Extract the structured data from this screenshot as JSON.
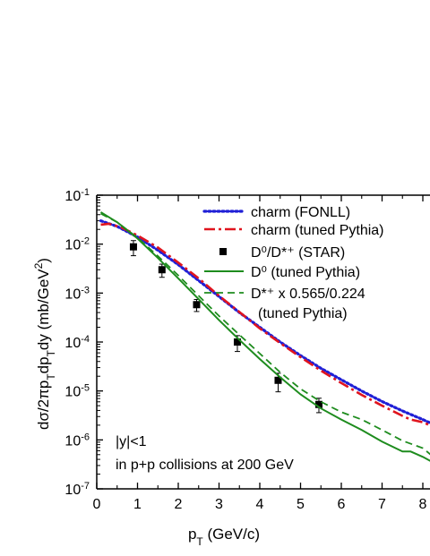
{
  "chart_data": {
    "type": "line",
    "y_scale": "log",
    "xlim": [
      0,
      8.3
    ],
    "ylim": [
      1e-07,
      0.1
    ],
    "xlabel": "p_T (GeV/c)",
    "ylabel": "dσ/2πp_T dp_T dy (mb/GeV²)",
    "x_ticks": [
      "0",
      "1",
      "2",
      "3",
      "4",
      "5",
      "6",
      "7",
      "8"
    ],
    "y_ticks": [
      {
        "value": 1e-07,
        "mant": "10",
        "exp": "-7"
      },
      {
        "value": 1e-06,
        "mant": "10",
        "exp": "-6"
      },
      {
        "value": 1e-05,
        "mant": "10",
        "exp": "-5"
      },
      {
        "value": 0.0001,
        "mant": "10",
        "exp": "-4"
      },
      {
        "value": 0.001,
        "mant": "10",
        "exp": "-3"
      },
      {
        "value": 0.01,
        "mant": "10",
        "exp": "-2"
      },
      {
        "value": 0.1,
        "mant": "10",
        "exp": "-1"
      }
    ],
    "annotations": [
      "|y|<1",
      "in p+p collisions at 200 GeV"
    ],
    "legend_position": "top-right",
    "series": [
      {
        "name": "charm (FONLL)",
        "style": "dotted",
        "color": "#1f1fd6",
        "x": [
          0.1,
          0.5,
          1.0,
          1.5,
          2.0,
          2.5,
          3.0,
          3.5,
          4.0,
          4.5,
          5.0,
          5.5,
          6.0,
          6.5,
          7.0,
          7.5,
          8.0,
          8.3
        ],
        "y": [
          0.03,
          0.023,
          0.014,
          0.0075,
          0.0038,
          0.0018,
          0.00085,
          0.0004,
          0.0002,
          0.0001,
          5.3e-05,
          2.9e-05,
          1.7e-05,
          1e-05,
          6.1e-06,
          3.9e-06,
          2.6e-06,
          2e-06
        ]
      },
      {
        "name": "charm (tuned Pythia)",
        "style": "dashdot",
        "color": "#e0141e",
        "x": [
          0.1,
          0.3,
          0.6,
          1.0,
          1.5,
          2.0,
          2.5,
          3.0,
          3.5,
          4.0,
          4.5,
          5.0,
          5.5,
          6.0,
          6.5,
          7.0,
          7.5,
          7.7,
          8.0,
          8.3
        ],
        "y": [
          0.025,
          0.026,
          0.022,
          0.015,
          0.0085,
          0.0042,
          0.002,
          0.00088,
          0.00041,
          0.00019,
          9.5e-05,
          4.9e-05,
          2.6e-05,
          1.45e-05,
          8.3e-06,
          5e-06,
          3.1e-06,
          2.6e-06,
          2.3e-06,
          1.8e-06
        ]
      },
      {
        "name": "D⁰/D*⁺ (STAR)",
        "style": "marker",
        "color": "#000000",
        "x": [
          0.9,
          1.6,
          2.45,
          3.45,
          4.45,
          5.45
        ],
        "y": [
          0.0088,
          0.003,
          0.00058,
          0.0001,
          1.65e-05,
          5.3e-06
        ],
        "err_low": [
          0.0058,
          0.0021,
          0.00042,
          6.4e-05,
          9.6e-06,
          3.6e-06
        ],
        "err_high": [
          0.0118,
          0.0039,
          0.00074,
          0.000135,
          2.3e-05,
          7.1e-06
        ]
      },
      {
        "name": "D⁰ (tuned Pythia)",
        "style": "solid",
        "color": "#1e8c1e",
        "x": [
          0.1,
          0.5,
          1.0,
          1.5,
          2.0,
          2.5,
          3.0,
          3.5,
          4.0,
          4.5,
          5.0,
          5.5,
          6.0,
          6.5,
          7.0,
          7.5,
          7.7,
          8.0,
          8.3
        ],
        "y": [
          0.045,
          0.028,
          0.013,
          0.0052,
          0.002,
          0.00075,
          0.00028,
          0.00011,
          4.5e-05,
          1.9e-05,
          8.5e-06,
          4.4e-06,
          2.6e-06,
          1.6e-06,
          9.2e-07,
          5.8e-07,
          5.8e-07,
          4.5e-07,
          3.3e-07
        ]
      },
      {
        "name_text": "D*⁺ x 0.565/0.224",
        "name_line2": "(tuned Pythia)",
        "style": "dashed",
        "color": "#1e8c1e",
        "x": [
          0.1,
          0.5,
          1.0,
          1.5,
          2.0,
          2.5,
          3.0,
          3.5,
          4.0,
          4.5,
          5.0,
          5.5,
          6.0,
          6.5,
          7.0,
          7.5,
          8.0,
          8.3
        ],
        "y": [
          0.042,
          0.028,
          0.0135,
          0.0057,
          0.0023,
          0.00088,
          0.00034,
          0.00014,
          5.8e-05,
          2.4e-05,
          1.1e-05,
          6e-06,
          3.7e-06,
          2.6e-06,
          1.6e-06,
          9.6e-07,
          6.8e-07,
          4.2e-07
        ]
      }
    ]
  }
}
